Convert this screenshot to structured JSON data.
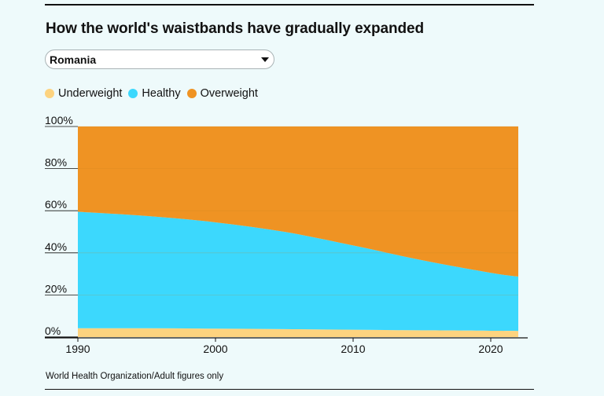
{
  "title": "How the world's waistbands have gradually expanded",
  "dropdown": {
    "selected": "Romania"
  },
  "source": "World Health Organization/Adult figures only",
  "colors": {
    "underweight": "#fdd37f",
    "healthy": "#3cd8fd",
    "overweight": "#ef9323",
    "background": "#eefafb"
  },
  "chart_data": {
    "type": "area",
    "stacked": true,
    "x": [
      1990,
      1995,
      2000,
      2005,
      2010,
      2015,
      2020,
      2022
    ],
    "series": [
      {
        "name": "Underweight",
        "values": [
          4.2,
          4.2,
          4.0,
          3.8,
          3.5,
          3.2,
          3.0,
          2.9
        ]
      },
      {
        "name": "Healthy",
        "values": [
          55.3,
          53.3,
          50.5,
          46.2,
          40.0,
          33.3,
          27.5,
          25.8
        ]
      },
      {
        "name": "Overweight",
        "values": [
          40.5,
          42.5,
          45.5,
          50.0,
          56.5,
          63.5,
          69.5,
          71.3
        ]
      }
    ],
    "xticks": [
      "1990",
      "2000",
      "2010",
      "2020"
    ],
    "xtick_values": [
      1990,
      2000,
      2010,
      2020
    ],
    "yticks": [
      "0%",
      "20%",
      "40%",
      "60%",
      "80%",
      "100%"
    ],
    "ytick_values": [
      0,
      20,
      40,
      60,
      80,
      100
    ],
    "xlim": [
      1990,
      2022
    ],
    "ylim": [
      0,
      100
    ],
    "title": "How the world's waistbands have gradually expanded",
    "legend_position": "top-left"
  }
}
